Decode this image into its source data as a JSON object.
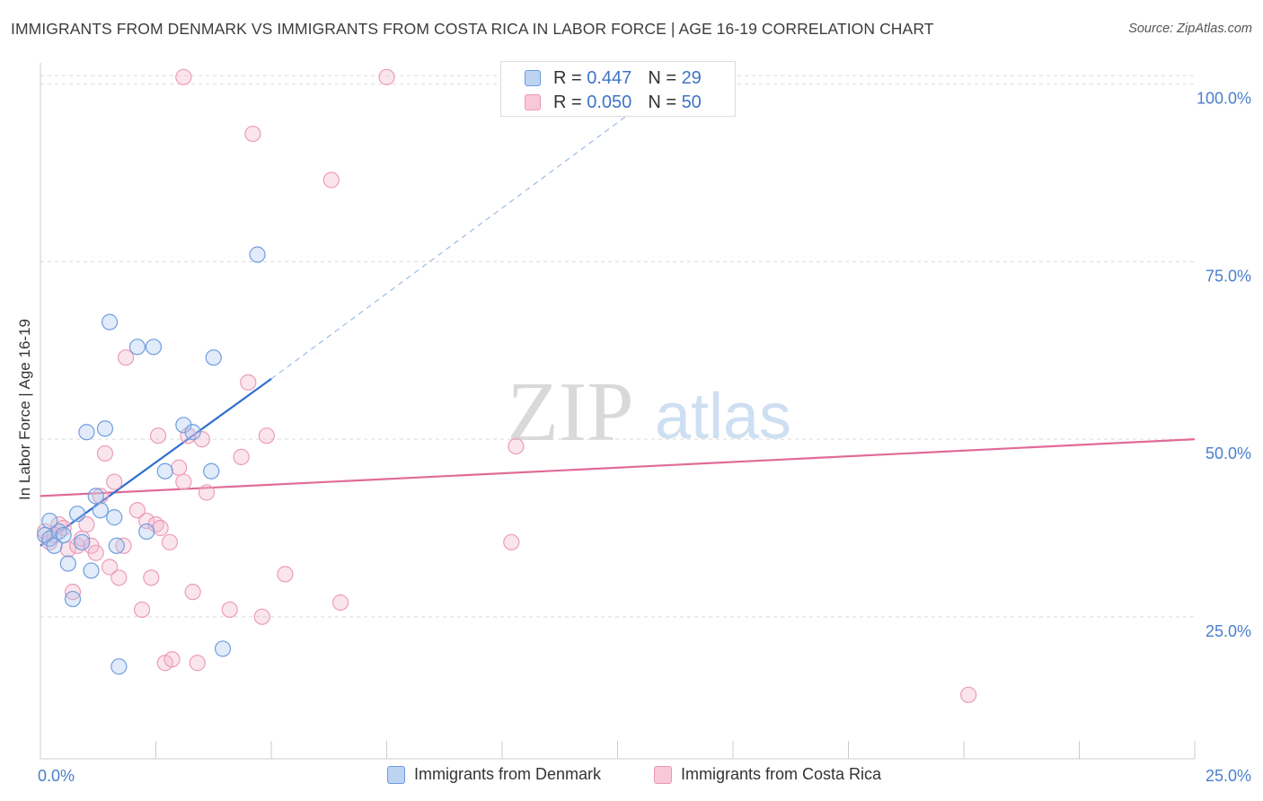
{
  "title": "IMMIGRANTS FROM DENMARK VS IMMIGRANTS FROM COSTA RICA IN LABOR FORCE | AGE 16-19 CORRELATION CHART",
  "source": "Source: ZipAtlas.com",
  "watermark": {
    "zip": "ZIP",
    "atlas": "atlas"
  },
  "legend": {
    "r_label": "R =",
    "n_label": "N =",
    "entries": [
      {
        "r": "0.447",
        "n": "29"
      },
      {
        "r": "0.050",
        "n": "50"
      }
    ]
  },
  "chart_data": {
    "type": "scatter",
    "xlabel": "",
    "ylabel": "In Labor Force | Age 16-19",
    "xlim": [
      0,
      25
    ],
    "ylim": [
      5,
      103
    ],
    "x_tick_labels": [
      "0.0%",
      "25.0%"
    ],
    "y_ticks": [
      25,
      50,
      75,
      100
    ],
    "y_tick_labels": [
      "25.0%",
      "50.0%",
      "75.0%",
      "100.0%"
    ],
    "grid": "horizontal dashed",
    "legend_position": "top-center",
    "colors": {
      "denmark": "#5b8fd6",
      "costa_rica": "#ea8fb0",
      "denmark_line": "#2f6fcf",
      "costa_rica_line": "#e06b99"
    },
    "series": [
      {
        "name": "Immigrants from Denmark",
        "points": [
          [
            0.1,
            36.5
          ],
          [
            0.2,
            36.0
          ],
          [
            0.3,
            35.0
          ],
          [
            0.4,
            37.0
          ],
          [
            0.5,
            36.5
          ],
          [
            0.6,
            32.5
          ],
          [
            0.7,
            27.5
          ],
          [
            0.8,
            39.5
          ],
          [
            0.9,
            35.5
          ],
          [
            1.0,
            51.0
          ],
          [
            1.1,
            31.5
          ],
          [
            1.2,
            42.0
          ],
          [
            1.3,
            40.0
          ],
          [
            1.4,
            51.5
          ],
          [
            1.5,
            66.5
          ],
          [
            1.6,
            39.0
          ],
          [
            1.65,
            35.0
          ],
          [
            1.7,
            18.0
          ],
          [
            2.1,
            63.0
          ],
          [
            2.3,
            37.0
          ],
          [
            2.45,
            63.0
          ],
          [
            2.7,
            45.5
          ],
          [
            3.1,
            52.0
          ],
          [
            3.3,
            51.0
          ],
          [
            3.7,
            45.5
          ],
          [
            3.75,
            61.5
          ],
          [
            3.95,
            20.5
          ],
          [
            4.7,
            76.0
          ],
          [
            0.2,
            38.5
          ]
        ],
        "trend": {
          "x0": 0.0,
          "y0": 35.0,
          "x1": 5.0,
          "y1": 58.5,
          "extension_x1": 13.0,
          "extension_y1": 97.0
        }
      },
      {
        "name": "Immigrants from Costa Rica",
        "points": [
          [
            0.1,
            37.0
          ],
          [
            0.2,
            35.5
          ],
          [
            0.3,
            36.5
          ],
          [
            0.4,
            38.0
          ],
          [
            0.5,
            37.5
          ],
          [
            0.6,
            34.5
          ],
          [
            0.7,
            28.5
          ],
          [
            0.8,
            35.0
          ],
          [
            0.9,
            36.0
          ],
          [
            1.0,
            38.0
          ],
          [
            1.1,
            35.0
          ],
          [
            1.2,
            34.0
          ],
          [
            1.3,
            42.0
          ],
          [
            1.4,
            48.0
          ],
          [
            1.5,
            32.0
          ],
          [
            1.6,
            44.0
          ],
          [
            1.7,
            30.5
          ],
          [
            1.8,
            35.0
          ],
          [
            1.85,
            61.5
          ],
          [
            2.1,
            40.0
          ],
          [
            2.2,
            26.0
          ],
          [
            2.3,
            38.5
          ],
          [
            2.4,
            30.5
          ],
          [
            2.5,
            38.0
          ],
          [
            2.55,
            50.5
          ],
          [
            2.6,
            37.5
          ],
          [
            2.7,
            18.5
          ],
          [
            2.8,
            35.5
          ],
          [
            2.85,
            19.0
          ],
          [
            3.0,
            46.0
          ],
          [
            3.1,
            44.0
          ],
          [
            3.2,
            50.5
          ],
          [
            3.3,
            28.5
          ],
          [
            3.4,
            18.5
          ],
          [
            3.5,
            50.0
          ],
          [
            3.6,
            42.5
          ],
          [
            4.1,
            26.0
          ],
          [
            4.35,
            47.5
          ],
          [
            4.5,
            58.0
          ],
          [
            4.6,
            93.0
          ],
          [
            4.8,
            25.0
          ],
          [
            4.9,
            50.5
          ],
          [
            5.3,
            31.0
          ],
          [
            6.3,
            86.5
          ],
          [
            6.5,
            27.0
          ],
          [
            10.2,
            35.5
          ],
          [
            10.3,
            49.0
          ],
          [
            20.1,
            14.0
          ],
          [
            3.1,
            101.0
          ],
          [
            7.5,
            101.0
          ]
        ],
        "trend": {
          "x0": 0.0,
          "y0": 42.0,
          "x1": 25.0,
          "y1": 50.0
        }
      }
    ]
  }
}
